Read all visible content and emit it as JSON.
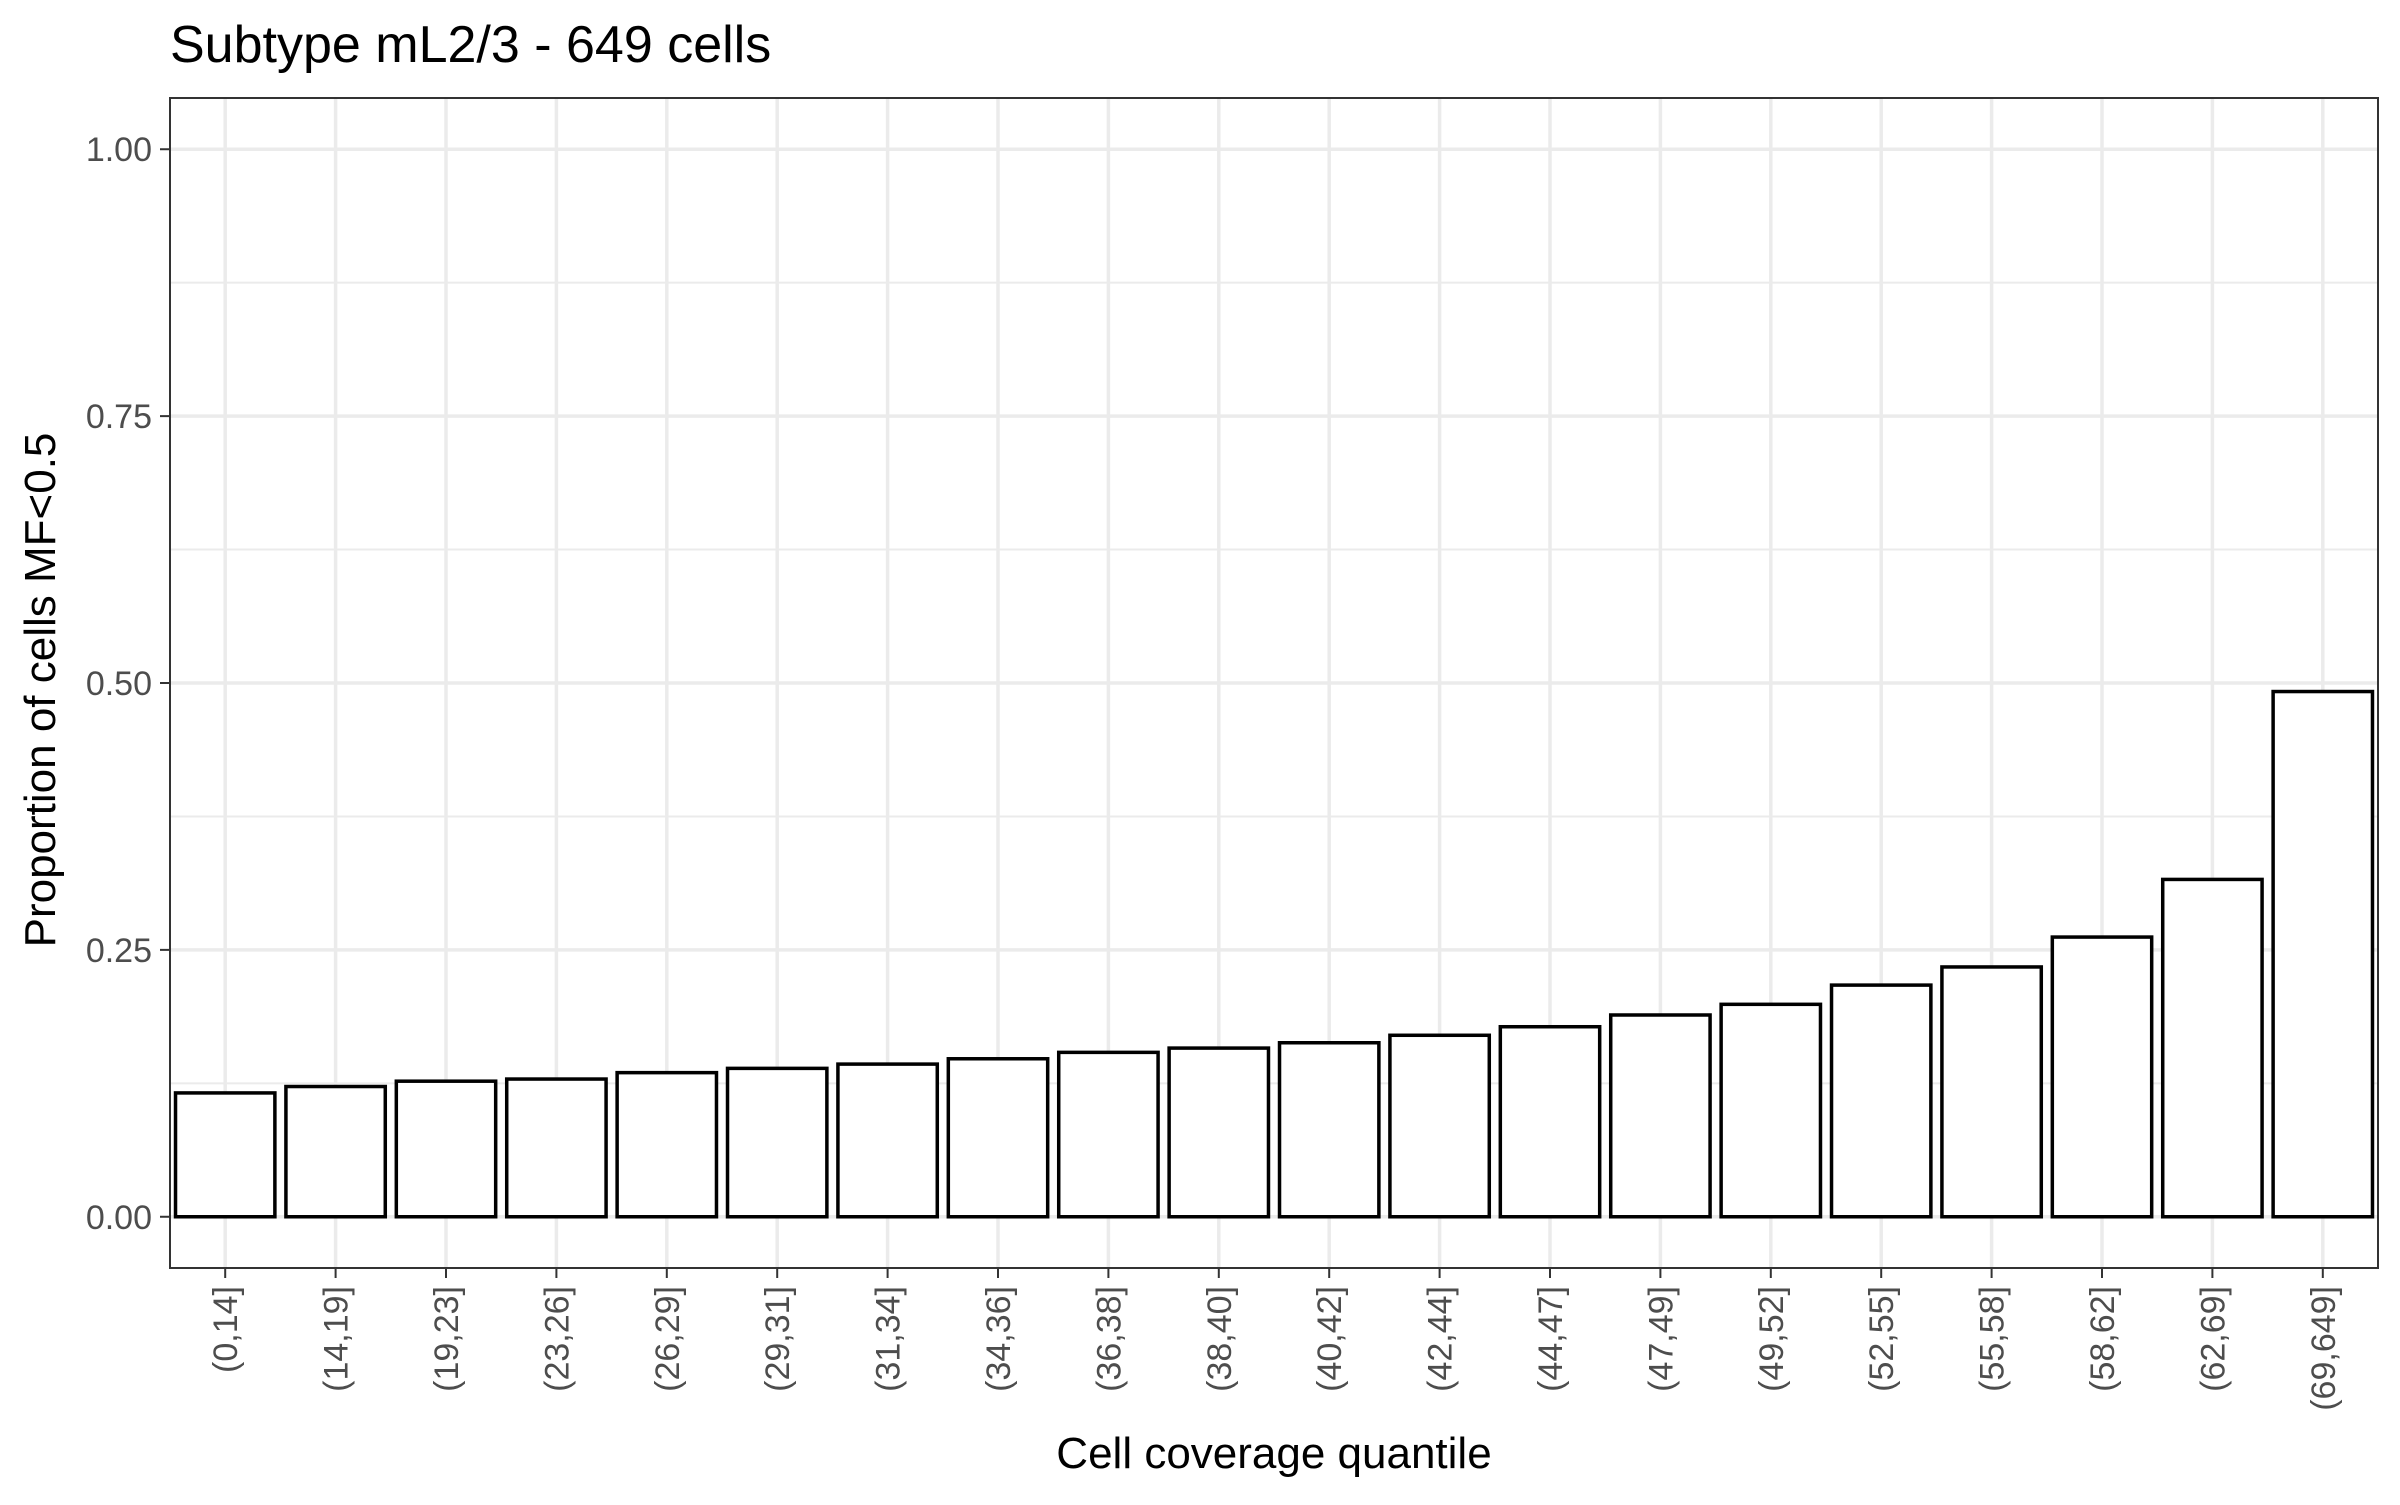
{
  "chart_data": {
    "type": "bar",
    "title": "Subtype mL2/3 - 649 cells",
    "xlabel": "Cell coverage quantile",
    "ylabel": "Proportion of cells MF<0.5",
    "categories": [
      "(0,14]",
      "(14,19]",
      "(19,23]",
      "(23,26]",
      "(26,29]",
      "(29,31]",
      "(31,34]",
      "(34,36]",
      "(36,38]",
      "(38,40]",
      "(40,42]",
      "(42,44]",
      "(44,47]",
      "(47,49]",
      "(49,52]",
      "(52,55]",
      "(55,58]",
      "(58,62]",
      "(62,69]",
      "(69,649]"
    ],
    "values": [
      0.116,
      0.122,
      0.127,
      0.129,
      0.135,
      0.139,
      0.143,
      0.148,
      0.154,
      0.158,
      0.163,
      0.17,
      0.178,
      0.189,
      0.199,
      0.217,
      0.234,
      0.262,
      0.316,
      0.492
    ],
    "ylim": [
      -0.048,
      1.048
    ],
    "yticks": [
      0,
      0.25,
      0.5,
      0.75,
      1
    ],
    "ytick_labels": [
      "0.00",
      "0.25",
      "0.50",
      "0.75",
      "1.00"
    ],
    "grid": true,
    "bar_fill": "#ffffff",
    "bar_stroke": "#000000",
    "grid_color": "#ebebeb"
  }
}
